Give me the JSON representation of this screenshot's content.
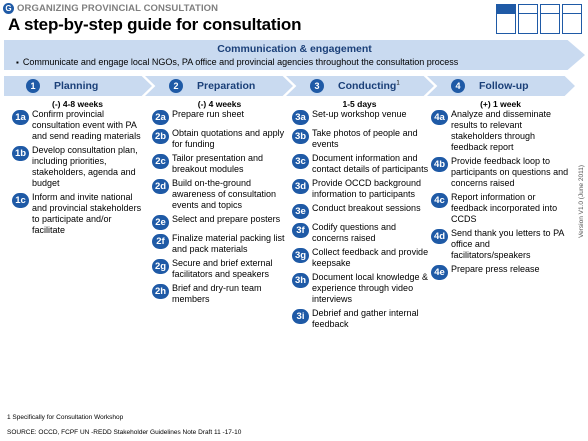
{
  "header": {
    "g_badge": "G",
    "section_tag": "ORGANIZING PROVINCIAL CONSULTATION",
    "title": "A step-by-step guide for consultation"
  },
  "communication": {
    "title": "Communication & engagement",
    "text": "Communicate and engage local NGOs, PA office and provincial agencies throughout the consultation process"
  },
  "phases": [
    {
      "number": "1",
      "label": "Planning",
      "duration": "(-) 4-8 weeks",
      "steps": [
        {
          "badge": "1a",
          "text": "Confirm provincial consultation event with PA and send reading materials"
        },
        {
          "badge": "1b",
          "text": "Develop consultation plan, including priorities, stakeholders, agenda and budget"
        },
        {
          "badge": "1c",
          "text": "Inform and invite national and provincial stakeholders to participate and/or facilitate"
        }
      ]
    },
    {
      "number": "2",
      "label": "Preparation",
      "duration": "(-) 4 weeks",
      "steps": [
        {
          "badge": "2a",
          "text": "Prepare run sheet"
        },
        {
          "badge": "2b",
          "text": "Obtain quotations and apply for funding"
        },
        {
          "badge": "2c",
          "text": "Tailor presentation and breakout modules"
        },
        {
          "badge": "2d",
          "text": "Build on-the-ground awareness of consultation events and topics"
        },
        {
          "badge": "2e",
          "text": "Select and prepare posters"
        },
        {
          "badge": "2f",
          "text": "Finalize material packing list and pack materials"
        },
        {
          "badge": "2g",
          "text": "Secure and brief external facilitators and speakers"
        },
        {
          "badge": "2h",
          "text": "Brief and dry-run team members"
        }
      ]
    },
    {
      "number": "3",
      "label": "Conducting",
      "label_sup": "1",
      "duration": "1-5 days",
      "steps": [
        {
          "badge": "3a",
          "text": "Set-up workshop venue"
        },
        {
          "badge": "3b",
          "text": "Take photos of people and events"
        },
        {
          "badge": "3c",
          "text": "Document information and contact details of participants"
        },
        {
          "badge": "3d",
          "text": "Provide OCCD background information to participants"
        },
        {
          "badge": "3e",
          "text": "Conduct breakout sessions"
        },
        {
          "badge": "3f",
          "text": "Codify questions and concerns raised"
        },
        {
          "badge": "3g",
          "text": "Collect feedback and provide keepsake"
        },
        {
          "badge": "3h",
          "text": "Document local knowledge & experience through video interviews"
        },
        {
          "badge": "3i",
          "text": "Debrief and gather internal feedback"
        }
      ]
    },
    {
      "number": "4",
      "label": "Follow-up",
      "duration": "(+) 1 week",
      "steps": [
        {
          "badge": "4a",
          "text": "Analyze and disseminate results to relevant stakeholders through feedback report"
        },
        {
          "badge": "4b",
          "text": "Provide feedback loop to participants on questions and concerns raised"
        },
        {
          "badge": "4c",
          "text": "Report information or feedback incorporated into CCDS"
        },
        {
          "badge": "4d",
          "text": "Send thank you letters to PA office and facilitators/speakers"
        },
        {
          "badge": "4e",
          "text": "Prepare press release"
        }
      ]
    }
  ],
  "version": "Version V1.0 (June 2011)",
  "footnote": "1 Specifically for Consultation Workshop",
  "source": "SOURCE: OCCD, FCPF UN -REDD Stakeholder Guidelines Note Draft 11     -17-10"
}
